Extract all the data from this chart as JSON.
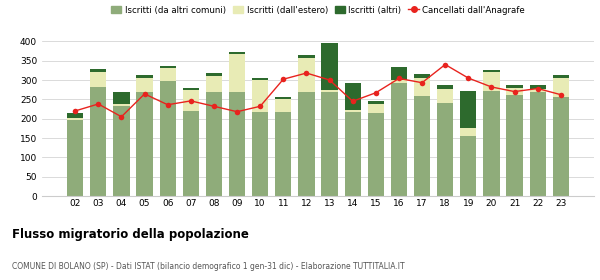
{
  "years": [
    "02",
    "03",
    "04",
    "05",
    "06",
    "07",
    "08",
    "09",
    "10",
    "11",
    "12",
    "13",
    "14",
    "15",
    "16",
    "17",
    "18",
    "19",
    "20",
    "21",
    "22",
    "23"
  ],
  "iscritti_altri_comuni": [
    197,
    283,
    232,
    270,
    297,
    220,
    270,
    270,
    218,
    218,
    268,
    270,
    218,
    215,
    293,
    258,
    240,
    155,
    272,
    262,
    268,
    255
  ],
  "iscritti_estero": [
    5,
    38,
    5,
    35,
    35,
    55,
    40,
    97,
    82,
    33,
    88,
    5,
    5,
    22,
    8,
    47,
    38,
    22,
    48,
    18,
    10,
    50
  ],
  "iscritti_altri": [
    12,
    7,
    32,
    8,
    5,
    5,
    8,
    5,
    5,
    5,
    8,
    120,
    70,
    8,
    32,
    10,
    8,
    95,
    5,
    8,
    8,
    8
  ],
  "cancellati": [
    220,
    238,
    205,
    264,
    236,
    246,
    232,
    218,
    232,
    302,
    318,
    300,
    245,
    267,
    304,
    293,
    340,
    305,
    282,
    270,
    278,
    262
  ],
  "color_comuni": "#8fac7a",
  "color_estero": "#e8ebb5",
  "color_altri": "#2d6a2d",
  "color_cancellati": "#e8231e",
  "legend_labels": [
    "Iscritti (da altri comuni)",
    "Iscritti (dall'estero)",
    "Iscritti (altri)",
    "Cancellati dall'Anagrafe"
  ],
  "title": "Flusso migratorio della popolazione",
  "subtitle": "COMUNE DI BOLANO (SP) - Dati ISTAT (bilancio demografico 1 gen-31 dic) - Elaborazione TUTTITALIA.IT",
  "ylim": [
    0,
    420
  ],
  "yticks": [
    0,
    50,
    100,
    150,
    200,
    250,
    300,
    350,
    400
  ],
  "grid_color": "#cccccc",
  "background": "#ffffff"
}
